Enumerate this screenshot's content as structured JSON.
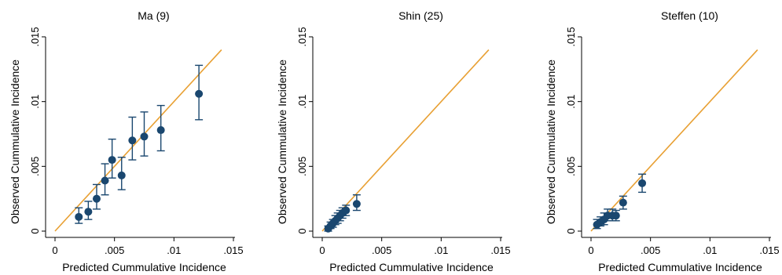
{
  "colors": {
    "marker": "#1a476f",
    "reference_line": "#e8a033",
    "axis": "#000000",
    "background": "#ffffff"
  },
  "chart_data": [
    {
      "type": "scatter",
      "title": "Ma (9)",
      "xlabel": "Predicted Cummulative Incidence",
      "ylabel": "Observed Cummulative Incidence",
      "xlim": [
        0,
        0.015
      ],
      "ylim": [
        0,
        0.015
      ],
      "xticks": [
        0,
        0.005,
        0.01,
        0.015
      ],
      "xtick_labels": [
        "0",
        ".005",
        ".01",
        ".015"
      ],
      "yticks": [
        0,
        0.005,
        0.01,
        0.015
      ],
      "ytick_labels": [
        "0",
        ".005",
        ".01",
        ".015"
      ],
      "grid": false,
      "reference_line": [
        [
          0,
          0
        ],
        [
          0.014,
          0.014
        ]
      ],
      "points": [
        {
          "x": 0.002,
          "y": 0.0011,
          "lo": 0.0006,
          "hi": 0.0018
        },
        {
          "x": 0.0028,
          "y": 0.0015,
          "lo": 0.0009,
          "hi": 0.0023
        },
        {
          "x": 0.0035,
          "y": 0.0025,
          "lo": 0.0017,
          "hi": 0.0036
        },
        {
          "x": 0.0042,
          "y": 0.0039,
          "lo": 0.0028,
          "hi": 0.0052
        },
        {
          "x": 0.0048,
          "y": 0.0055,
          "lo": 0.0041,
          "hi": 0.0071
        },
        {
          "x": 0.0056,
          "y": 0.0043,
          "lo": 0.0032,
          "hi": 0.0057
        },
        {
          "x": 0.0065,
          "y": 0.007,
          "lo": 0.0055,
          "hi": 0.0088
        },
        {
          "x": 0.0075,
          "y": 0.0073,
          "lo": 0.0058,
          "hi": 0.0092
        },
        {
          "x": 0.0089,
          "y": 0.0078,
          "lo": 0.0062,
          "hi": 0.0097
        },
        {
          "x": 0.0121,
          "y": 0.0106,
          "lo": 0.0086,
          "hi": 0.0128
        }
      ]
    },
    {
      "type": "scatter",
      "title": "Shin (25)",
      "xlabel": "Predicted Cummulative Incidence",
      "ylabel": "Observed Cummulative Incidence",
      "xlim": [
        0,
        0.015
      ],
      "ylim": [
        0,
        0.015
      ],
      "xticks": [
        0,
        0.005,
        0.01,
        0.015
      ],
      "xtick_labels": [
        "0",
        ".005",
        ".01",
        ".015"
      ],
      "yticks": [
        0,
        0.005,
        0.01,
        0.015
      ],
      "ytick_labels": [
        "0",
        ".005",
        ".01",
        ".015"
      ],
      "grid": false,
      "reference_line": [
        [
          0,
          0
        ],
        [
          0.014,
          0.014
        ]
      ],
      "points": [
        {
          "x": 0.0005,
          "y": 0.0002,
          "lo": 0.0,
          "hi": 0.0004
        },
        {
          "x": 0.0007,
          "y": 0.0004,
          "lo": 0.0002,
          "hi": 0.0007
        },
        {
          "x": 0.0009,
          "y": 0.0006,
          "lo": 0.0003,
          "hi": 0.0009
        },
        {
          "x": 0.0011,
          "y": 0.0008,
          "lo": 0.0005,
          "hi": 0.0012
        },
        {
          "x": 0.0013,
          "y": 0.001,
          "lo": 0.0006,
          "hi": 0.0014
        },
        {
          "x": 0.0015,
          "y": 0.0012,
          "lo": 0.0008,
          "hi": 0.0016
        },
        {
          "x": 0.0017,
          "y": 0.0014,
          "lo": 0.001,
          "hi": 0.0018
        },
        {
          "x": 0.002,
          "y": 0.0016,
          "lo": 0.0012,
          "hi": 0.002
        },
        {
          "x": 0.0029,
          "y": 0.0021,
          "lo": 0.0016,
          "hi": 0.0028
        }
      ]
    },
    {
      "type": "scatter",
      "title": "Steffen (10)",
      "xlabel": "Predicted Cummulative Incidence",
      "ylabel": "Observed Cummulative Incidence",
      "xlim": [
        0,
        0.015
      ],
      "ylim": [
        0,
        0.015
      ],
      "xticks": [
        0,
        0.005,
        0.01,
        0.015
      ],
      "xtick_labels": [
        "0",
        ".005",
        ".01",
        ".015"
      ],
      "yticks": [
        0,
        0.005,
        0.01,
        0.015
      ],
      "ytick_labels": [
        "0",
        ".005",
        ".01",
        ".015"
      ],
      "grid": false,
      "reference_line": [
        [
          0,
          0
        ],
        [
          0.014,
          0.014
        ]
      ],
      "points": [
        {
          "x": 0.0005,
          "y": 0.0005,
          "lo": 0.0002,
          "hi": 0.0009
        },
        {
          "x": 0.0008,
          "y": 0.0007,
          "lo": 0.0004,
          "hi": 0.0011
        },
        {
          "x": 0.0011,
          "y": 0.0009,
          "lo": 0.0005,
          "hi": 0.0014
        },
        {
          "x": 0.0014,
          "y": 0.0012,
          "lo": 0.0008,
          "hi": 0.0017
        },
        {
          "x": 0.0018,
          "y": 0.0012,
          "lo": 0.0008,
          "hi": 0.0017
        },
        {
          "x": 0.0021,
          "y": 0.0012,
          "lo": 0.0008,
          "hi": 0.0016
        },
        {
          "x": 0.0027,
          "y": 0.0022,
          "lo": 0.0017,
          "hi": 0.0027
        },
        {
          "x": 0.0043,
          "y": 0.0037,
          "lo": 0.003,
          "hi": 0.0044
        }
      ]
    }
  ]
}
